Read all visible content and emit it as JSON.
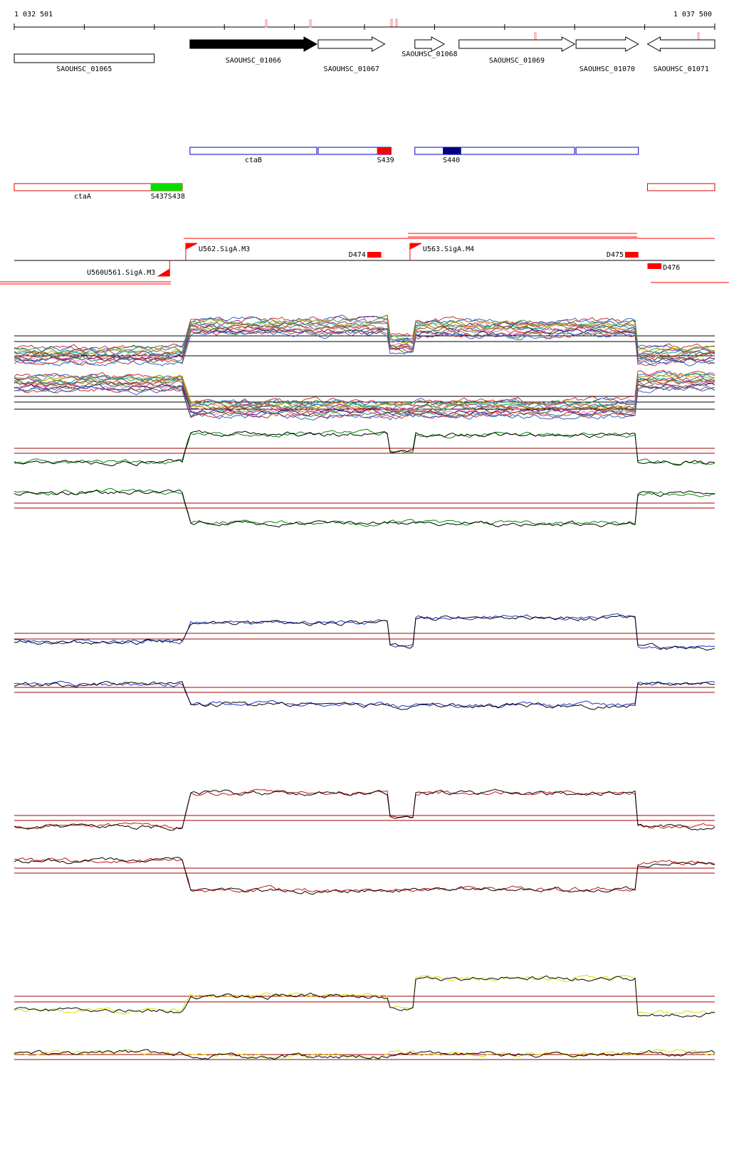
{
  "ruler": {
    "start_label": "1 032 501",
    "end_label": "1 037 500",
    "start": 1032501,
    "end": 1037500
  },
  "genes": [
    {
      "id": "SAOUHSC_01065",
      "label": "SAOUHSC_01065",
      "strand": "none",
      "filled": false,
      "start": 1032501,
      "end": 1033500
    },
    {
      "id": "SAOUHSC_01066",
      "label": "SAOUHSC_01066",
      "strand": "+",
      "filled": true,
      "start": 1033755,
      "end": 1034660
    },
    {
      "id": "SAOUHSC_01067",
      "label": "SAOUHSC_01067",
      "strand": "+",
      "filled": false,
      "start": 1034670,
      "end": 1035145
    },
    {
      "id": "SAOUHSC_01068",
      "label": "SAOUHSC_01068",
      "strand": "+",
      "filled": false,
      "start": 1035360,
      "end": 1035570
    },
    {
      "id": "SAOUHSC_01069",
      "label": "SAOUHSC_01069",
      "strand": "+",
      "filled": false,
      "start": 1035675,
      "end": 1036500
    },
    {
      "id": "SAOUHSC_01070",
      "label": "SAOUHSC_01070",
      "strand": "+",
      "filled": false,
      "start": 1036510,
      "end": 1036955
    },
    {
      "id": "SAOUHSC_01071",
      "label": "SAOUHSC_01071",
      "strand": "-",
      "filled": false,
      "start": 1037020,
      "end": 1037500
    }
  ],
  "operons_blue": [
    {
      "label": "ctaB",
      "start": 1033755,
      "end": 1034660
    },
    {
      "label": "S439",
      "start": 1034670,
      "end": 1035190,
      "box": {
        "start": 1035090,
        "end": 1035190,
        "color": "#ff0000"
      }
    },
    {
      "label": "S440",
      "start": 1035360,
      "end": 1036500,
      "box": {
        "start": 1035560,
        "end": 1035690,
        "color": "#000080"
      }
    },
    {
      "label": "",
      "start": 1036510,
      "end": 1036955
    }
  ],
  "operons_red": [
    {
      "label": "ctaA",
      "start": 1032501,
      "end": 1033700,
      "box": {
        "start": 1033475,
        "end": 1033700,
        "color": "#00dd00"
      }
    },
    {
      "label": "S437S438",
      "start": 1033475,
      "end": 1033475
    },
    {
      "label": "",
      "start": 1037020,
      "end": 1037500
    }
  ],
  "tus": [
    {
      "label": "U562.SigA.M3",
      "pos": 1033725,
      "strand": "+"
    },
    {
      "label": "U563.SigA.M4",
      "pos": 1035325,
      "strand": "+"
    },
    {
      "label": "U560U561.SigA.M3",
      "pos": 1033610,
      "strand": "-"
    }
  ],
  "terminators": [
    {
      "label": "D474",
      "start": 1035020,
      "end": 1035120
    },
    {
      "label": "D475",
      "start": 1036860,
      "end": 1036955
    },
    {
      "label": "D476",
      "start": 1037020,
      "end": 1037120
    }
  ],
  "colors": {
    "ruler": "#000000",
    "operon_blue": "#0000cc",
    "operon_red": "#dd0000",
    "tu_red": "#ff0000",
    "cut": "#a00000",
    "profile_green": "#008800",
    "profile_blue": "#2233cc",
    "profile_red": "#cc1111",
    "profile_yellow": "#dddd00"
  }
}
